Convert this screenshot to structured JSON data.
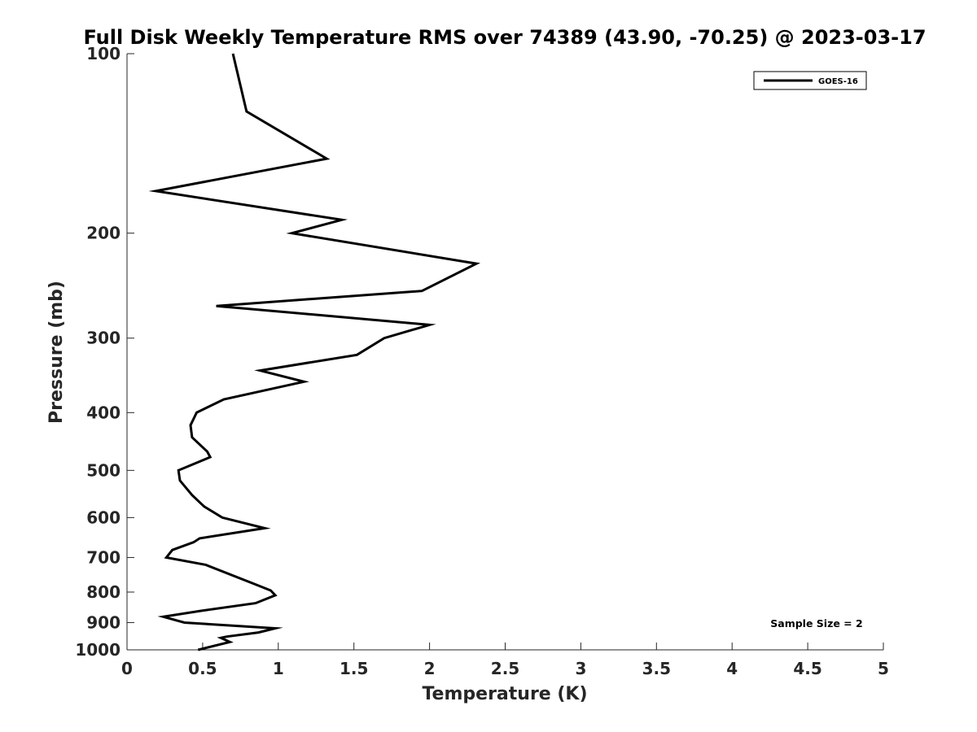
{
  "chart_data": {
    "type": "line",
    "title": "Full Disk Weekly Temperature RMS over 74389 (43.90, -70.25) @ 2023-03-17",
    "xlabel": "Temperature (K)",
    "ylabel": "Pressure (mb)",
    "xlim": [
      0,
      5
    ],
    "ylim": [
      1000,
      100
    ],
    "y_scale": "log",
    "y_reversed": true,
    "grid": false,
    "legend_position": "top-right",
    "x_ticks": [
      0,
      0.5,
      1,
      1.5,
      2,
      2.5,
      3,
      3.5,
      4,
      4.5,
      5
    ],
    "x_tick_labels": [
      "0",
      "0.5",
      "1",
      "1.5",
      "2",
      "2.5",
      "3",
      "3.5",
      "4",
      "4.5",
      "5"
    ],
    "y_ticks": [
      100,
      200,
      300,
      400,
      500,
      600,
      700,
      800,
      900,
      1000
    ],
    "y_tick_labels": [
      "100",
      "200",
      "300",
      "400",
      "500",
      "600",
      "700",
      "800",
      "900",
      "1000"
    ],
    "series": [
      {
        "name": "GOES-16",
        "color": "#000000",
        "points": [
          [
            0.7,
            100
          ],
          [
            0.79,
            125
          ],
          [
            1.32,
            150
          ],
          [
            0.19,
            170
          ],
          [
            1.42,
            190
          ],
          [
            1.09,
            200
          ],
          [
            2.31,
            225
          ],
          [
            1.95,
            250
          ],
          [
            0.59,
            265
          ],
          [
            2.0,
            285
          ],
          [
            1.7,
            300
          ],
          [
            1.52,
            320
          ],
          [
            0.88,
            340
          ],
          [
            1.17,
            355
          ],
          [
            0.64,
            380
          ],
          [
            0.46,
            400
          ],
          [
            0.42,
            420
          ],
          [
            0.43,
            440
          ],
          [
            0.53,
            465
          ],
          [
            0.55,
            475
          ],
          [
            0.34,
            500
          ],
          [
            0.35,
            520
          ],
          [
            0.43,
            550
          ],
          [
            0.51,
            575
          ],
          [
            0.63,
            600
          ],
          [
            0.91,
            625
          ],
          [
            0.48,
            650
          ],
          [
            0.44,
            660
          ],
          [
            0.3,
            680
          ],
          [
            0.26,
            700
          ],
          [
            0.52,
            720
          ],
          [
            0.84,
            775
          ],
          [
            0.95,
            795
          ],
          [
            0.98,
            810
          ],
          [
            0.85,
            835
          ],
          [
            0.49,
            860
          ],
          [
            0.24,
            880
          ],
          [
            0.38,
            900
          ],
          [
            0.98,
            920
          ],
          [
            0.87,
            935
          ],
          [
            0.66,
            950
          ],
          [
            0.62,
            955
          ],
          [
            0.68,
            970
          ],
          [
            0.47,
            1000
          ]
        ]
      }
    ],
    "annotations": [
      {
        "text": "Sample Size = 2",
        "position": "bottom-right"
      }
    ]
  }
}
